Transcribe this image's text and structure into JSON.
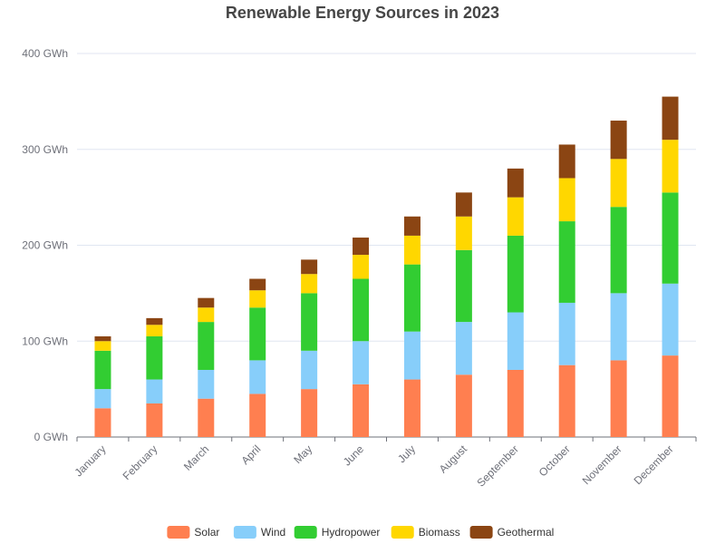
{
  "chart_data": {
    "type": "bar",
    "stacked": true,
    "title": "Renewable Energy Sources in 2023",
    "xlabel": "",
    "ylabel": "",
    "unit": "GWh",
    "ylim": [
      0,
      400
    ],
    "y_ticks": [
      "0 GWh",
      "100 GWh",
      "200 GWh",
      "300 GWh",
      "400 GWh"
    ],
    "y_tick_values": [
      0,
      100,
      200,
      300,
      400
    ],
    "grid": true,
    "legend_position": "bottom",
    "categories": [
      "January",
      "February",
      "March",
      "April",
      "May",
      "June",
      "July",
      "August",
      "September",
      "October",
      "November",
      "December"
    ],
    "series": [
      {
        "name": "Solar",
        "color": "#ff7f50",
        "values": [
          30,
          35,
          40,
          45,
          50,
          55,
          60,
          65,
          70,
          75,
          80,
          85
        ]
      },
      {
        "name": "Wind",
        "color": "#87cefa",
        "values": [
          20,
          25,
          30,
          35,
          40,
          45,
          50,
          55,
          60,
          65,
          70,
          75
        ]
      },
      {
        "name": "Hydropower",
        "color": "#32cd32",
        "values": [
          40,
          45,
          50,
          55,
          60,
          65,
          70,
          75,
          80,
          85,
          90,
          95
        ]
      },
      {
        "name": "Biomass",
        "color": "#ffd700",
        "values": [
          10,
          12,
          15,
          18,
          20,
          25,
          30,
          35,
          40,
          45,
          50,
          55
        ]
      },
      {
        "name": "Geothermal",
        "color": "#8b4513",
        "values": [
          5,
          7,
          10,
          12,
          15,
          18,
          20,
          25,
          30,
          35,
          40,
          45
        ]
      }
    ]
  }
}
